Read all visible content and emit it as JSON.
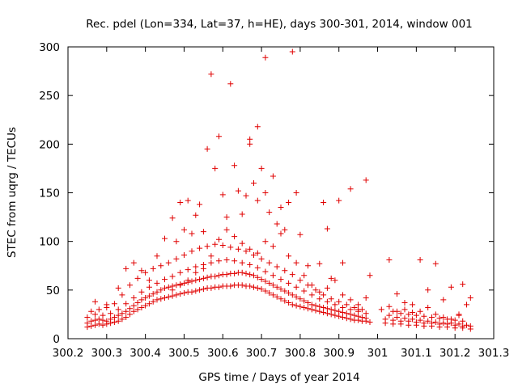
{
  "chart_data": {
    "type": "scatter",
    "title": "Rec. pdel (Lon=334, Lat=37, h=HE), days 300-301, 2014, window 001",
    "xlabel": "GPS time / Days of year 2014",
    "ylabel": "STEC from uqrg / TECUs",
    "xlim": [
      300.2,
      301.3
    ],
    "ylim": [
      0,
      300
    ],
    "xticks": [
      "300.2",
      "300.3",
      "300.4",
      "300.5",
      "300.6",
      "300.7",
      "300.8",
      "300.9",
      "301",
      "301.1",
      "301.2",
      "301.3"
    ],
    "xtick_values": [
      300.2,
      300.3,
      300.4,
      300.5,
      300.6,
      300.7,
      300.8,
      300.9,
      301.0,
      301.1,
      301.2,
      301.3
    ],
    "yticks": [
      "0",
      "50",
      "100",
      "150",
      "200",
      "250",
      "300"
    ],
    "ytick_values": [
      0,
      50,
      100,
      150,
      200,
      250,
      300
    ],
    "grid": false,
    "marker": "+",
    "color": "#e00000",
    "points": [
      [
        300.25,
        12
      ],
      [
        300.26,
        13
      ],
      [
        300.27,
        14
      ],
      [
        300.28,
        15
      ],
      [
        300.29,
        14
      ],
      [
        300.3,
        15
      ],
      [
        300.31,
        16
      ],
      [
        300.32,
        17
      ],
      [
        300.33,
        18
      ],
      [
        300.34,
        20
      ],
      [
        300.35,
        22
      ],
      [
        300.36,
        25
      ],
      [
        300.37,
        28
      ],
      [
        300.38,
        30
      ],
      [
        300.39,
        32
      ],
      [
        300.4,
        34
      ],
      [
        300.41,
        36
      ],
      [
        300.42,
        38
      ],
      [
        300.43,
        40
      ],
      [
        300.44,
        41
      ],
      [
        300.45,
        42
      ],
      [
        300.46,
        43
      ],
      [
        300.47,
        44
      ],
      [
        300.48,
        45
      ],
      [
        300.49,
        46
      ],
      [
        300.5,
        47
      ],
      [
        300.51,
        48
      ],
      [
        300.52,
        48
      ],
      [
        300.53,
        49
      ],
      [
        300.54,
        50
      ],
      [
        300.55,
        51
      ],
      [
        300.56,
        52
      ],
      [
        300.57,
        52
      ],
      [
        300.58,
        53
      ],
      [
        300.59,
        53
      ],
      [
        300.6,
        54
      ],
      [
        300.61,
        54
      ],
      [
        300.62,
        54
      ],
      [
        300.63,
        55
      ],
      [
        300.64,
        55
      ],
      [
        300.65,
        55
      ],
      [
        300.66,
        54
      ],
      [
        300.67,
        54
      ],
      [
        300.68,
        53
      ],
      [
        300.69,
        52
      ],
      [
        300.7,
        51
      ],
      [
        300.71,
        49
      ],
      [
        300.72,
        47
      ],
      [
        300.73,
        45
      ],
      [
        300.74,
        43
      ],
      [
        300.75,
        41
      ],
      [
        300.76,
        39
      ],
      [
        300.77,
        37
      ],
      [
        300.78,
        35
      ],
      [
        300.79,
        34
      ],
      [
        300.8,
        33
      ],
      [
        300.81,
        32
      ],
      [
        300.82,
        31
      ],
      [
        300.83,
        30
      ],
      [
        300.84,
        29
      ],
      [
        300.85,
        28
      ],
      [
        300.86,
        27
      ],
      [
        300.87,
        26
      ],
      [
        300.88,
        25
      ],
      [
        300.89,
        24
      ],
      [
        300.9,
        23
      ],
      [
        300.91,
        22
      ],
      [
        300.92,
        21
      ],
      [
        300.93,
        20
      ],
      [
        300.94,
        19
      ],
      [
        300.95,
        19
      ],
      [
        300.96,
        18
      ],
      [
        300.97,
        18
      ],
      [
        300.98,
        17
      ],
      [
        301.02,
        16
      ],
      [
        301.04,
        15
      ],
      [
        301.06,
        15
      ],
      [
        301.08,
        14
      ],
      [
        301.1,
        14
      ],
      [
        301.12,
        13
      ],
      [
        301.14,
        13
      ],
      [
        301.16,
        12
      ],
      [
        301.18,
        12
      ],
      [
        301.2,
        11
      ],
      [
        301.22,
        11
      ],
      [
        301.24,
        10
      ],
      [
        300.25,
        16
      ],
      [
        300.26,
        18
      ],
      [
        300.27,
        19
      ],
      [
        300.28,
        20
      ],
      [
        300.29,
        19
      ],
      [
        300.3,
        18
      ],
      [
        300.31,
        20
      ],
      [
        300.32,
        22
      ],
      [
        300.33,
        24
      ],
      [
        300.34,
        26
      ],
      [
        300.35,
        28
      ],
      [
        300.36,
        31
      ],
      [
        300.37,
        34
      ],
      [
        300.38,
        37
      ],
      [
        300.39,
        40
      ],
      [
        300.4,
        42
      ],
      [
        300.41,
        44
      ],
      [
        300.42,
        46
      ],
      [
        300.43,
        48
      ],
      [
        300.44,
        50
      ],
      [
        300.45,
        52
      ],
      [
        300.46,
        53
      ],
      [
        300.47,
        54
      ],
      [
        300.48,
        55
      ],
      [
        300.49,
        56
      ],
      [
        300.5,
        57
      ],
      [
        300.51,
        58
      ],
      [
        300.52,
        59
      ],
      [
        300.53,
        60
      ],
      [
        300.54,
        61
      ],
      [
        300.55,
        62
      ],
      [
        300.56,
        63
      ],
      [
        300.57,
        64
      ],
      [
        300.58,
        64
      ],
      [
        300.59,
        65
      ],
      [
        300.6,
        66
      ],
      [
        300.61,
        66
      ],
      [
        300.62,
        67
      ],
      [
        300.63,
        67
      ],
      [
        300.64,
        68
      ],
      [
        300.65,
        68
      ],
      [
        300.66,
        67
      ],
      [
        300.67,
        66
      ],
      [
        300.68,
        65
      ],
      [
        300.69,
        63
      ],
      [
        300.7,
        61
      ],
      [
        300.71,
        59
      ],
      [
        300.72,
        57
      ],
      [
        300.73,
        55
      ],
      [
        300.74,
        53
      ],
      [
        300.75,
        51
      ],
      [
        300.76,
        49
      ],
      [
        300.77,
        47
      ],
      [
        300.78,
        45
      ],
      [
        300.79,
        43
      ],
      [
        300.8,
        41
      ],
      [
        300.81,
        39
      ],
      [
        300.82,
        37
      ],
      [
        300.83,
        35
      ],
      [
        300.84,
        34
      ],
      [
        300.85,
        33
      ],
      [
        300.86,
        32
      ],
      [
        300.87,
        31
      ],
      [
        300.88,
        30
      ],
      [
        300.89,
        29
      ],
      [
        300.9,
        28
      ],
      [
        300.91,
        27
      ],
      [
        300.92,
        26
      ],
      [
        300.93,
        25
      ],
      [
        300.94,
        24
      ],
      [
        300.95,
        23
      ],
      [
        300.96,
        22
      ],
      [
        300.97,
        21
      ],
      [
        301.02,
        20
      ],
      [
        301.04,
        19
      ],
      [
        301.06,
        18
      ],
      [
        301.08,
        18
      ],
      [
        301.1,
        17
      ],
      [
        301.12,
        16
      ],
      [
        301.14,
        16
      ],
      [
        301.16,
        15
      ],
      [
        301.18,
        15
      ],
      [
        301.2,
        14
      ],
      [
        301.22,
        13
      ],
      [
        301.24,
        13
      ],
      [
        300.25,
        22
      ],
      [
        300.27,
        25
      ],
      [
        300.29,
        24
      ],
      [
        300.31,
        26
      ],
      [
        300.33,
        30
      ],
      [
        300.35,
        36
      ],
      [
        300.37,
        42
      ],
      [
        300.39,
        48
      ],
      [
        300.41,
        53
      ],
      [
        300.43,
        57
      ],
      [
        300.45,
        61
      ],
      [
        300.47,
        64
      ],
      [
        300.49,
        68
      ],
      [
        300.51,
        71
      ],
      [
        300.53,
        74
      ],
      [
        300.55,
        76
      ],
      [
        300.57,
        78
      ],
      [
        300.59,
        80
      ],
      [
        300.61,
        81
      ],
      [
        300.63,
        80
      ],
      [
        300.65,
        78
      ],
      [
        300.67,
        76
      ],
      [
        300.69,
        73
      ],
      [
        300.71,
        69
      ],
      [
        300.73,
        65
      ],
      [
        300.75,
        61
      ],
      [
        300.77,
        57
      ],
      [
        300.79,
        53
      ],
      [
        300.81,
        49
      ],
      [
        300.83,
        45
      ],
      [
        300.85,
        41
      ],
      [
        300.87,
        38
      ],
      [
        300.89,
        35
      ],
      [
        300.91,
        32
      ],
      [
        300.93,
        30
      ],
      [
        300.95,
        28
      ],
      [
        300.97,
        26
      ],
      [
        301.03,
        24
      ],
      [
        301.05,
        22
      ],
      [
        301.07,
        21
      ],
      [
        301.09,
        20
      ],
      [
        301.11,
        19
      ],
      [
        301.13,
        18
      ],
      [
        301.15,
        17
      ],
      [
        301.17,
        16
      ],
      [
        301.19,
        16
      ],
      [
        301.21,
        15
      ],
      [
        301.23,
        14
      ],
      [
        300.26,
        28
      ],
      [
        300.28,
        30
      ],
      [
        300.3,
        32
      ],
      [
        300.32,
        36
      ],
      [
        300.34,
        45
      ],
      [
        300.36,
        55
      ],
      [
        300.38,
        62
      ],
      [
        300.4,
        68
      ],
      [
        300.42,
        72
      ],
      [
        300.44,
        75
      ],
      [
        300.46,
        78
      ],
      [
        300.48,
        82
      ],
      [
        300.5,
        86
      ],
      [
        300.52,
        90
      ],
      [
        300.54,
        93
      ],
      [
        300.56,
        95
      ],
      [
        300.58,
        97
      ],
      [
        300.6,
        96
      ],
      [
        300.62,
        94
      ],
      [
        300.64,
        92
      ],
      [
        300.66,
        90
      ],
      [
        300.68,
        86
      ],
      [
        300.7,
        82
      ],
      [
        300.72,
        78
      ],
      [
        300.74,
        74
      ],
      [
        300.76,
        70
      ],
      [
        300.78,
        66
      ],
      [
        300.8,
        60
      ],
      [
        300.82,
        55
      ],
      [
        300.84,
        50
      ],
      [
        300.86,
        45
      ],
      [
        300.88,
        41
      ],
      [
        300.9,
        38
      ],
      [
        300.92,
        35
      ],
      [
        300.94,
        32
      ],
      [
        300.96,
        30
      ],
      [
        301.04,
        28
      ],
      [
        301.06,
        26
      ],
      [
        301.08,
        25
      ],
      [
        301.1,
        24
      ],
      [
        301.12,
        23
      ],
      [
        301.14,
        22
      ],
      [
        301.16,
        21
      ],
      [
        301.18,
        20
      ],
      [
        301.2,
        19
      ],
      [
        301.22,
        18
      ],
      [
        300.27,
        38
      ],
      [
        300.3,
        35
      ],
      [
        300.33,
        52
      ],
      [
        300.35,
        72
      ],
      [
        300.37,
        78
      ],
      [
        300.39,
        70
      ],
      [
        300.41,
        60
      ],
      [
        300.43,
        85
      ],
      [
        300.45,
        103
      ],
      [
        300.47,
        124
      ],
      [
        300.48,
        100
      ],
      [
        300.49,
        140
      ],
      [
        300.5,
        112
      ],
      [
        300.51,
        142
      ],
      [
        300.52,
        108
      ],
      [
        300.53,
        127
      ],
      [
        300.54,
        138
      ],
      [
        300.55,
        110
      ],
      [
        300.56,
        195
      ],
      [
        300.57,
        272
      ],
      [
        300.58,
        175
      ],
      [
        300.59,
        208
      ],
      [
        300.6,
        148
      ],
      [
        300.61,
        125
      ],
      [
        300.62,
        262
      ],
      [
        300.63,
        178
      ],
      [
        300.64,
        152
      ],
      [
        300.65,
        128
      ],
      [
        300.66,
        147
      ],
      [
        300.67,
        200
      ],
      [
        300.67,
        205
      ],
      [
        300.68,
        160
      ],
      [
        300.69,
        218
      ],
      [
        300.69,
        142
      ],
      [
        300.7,
        175
      ],
      [
        300.71,
        150
      ],
      [
        300.71,
        289
      ],
      [
        300.72,
        130
      ],
      [
        300.73,
        167
      ],
      [
        300.74,
        118
      ],
      [
        300.75,
        135
      ],
      [
        300.76,
        112
      ],
      [
        300.77,
        140
      ],
      [
        300.78,
        295
      ],
      [
        300.79,
        150
      ],
      [
        300.8,
        107
      ],
      [
        300.82,
        75
      ],
      [
        300.85,
        77
      ],
      [
        300.86,
        140
      ],
      [
        300.87,
        113
      ],
      [
        300.88,
        62
      ],
      [
        300.9,
        142
      ],
      [
        300.91,
        78
      ],
      [
        300.93,
        154
      ],
      [
        300.95,
        30
      ],
      [
        300.97,
        163
      ],
      [
        300.98,
        65
      ],
      [
        301.03,
        81
      ],
      [
        301.05,
        46
      ],
      [
        301.07,
        37
      ],
      [
        301.09,
        27
      ],
      [
        301.11,
        81
      ],
      [
        301.13,
        50
      ],
      [
        301.15,
        77
      ],
      [
        301.17,
        40
      ],
      [
        301.19,
        53
      ],
      [
        301.21,
        25
      ],
      [
        301.22,
        56
      ],
      [
        301.24,
        42
      ],
      [
        300.47,
        50
      ],
      [
        300.49,
        55
      ],
      [
        300.51,
        60
      ],
      [
        300.53,
        68
      ],
      [
        300.55,
        72
      ],
      [
        300.57,
        85
      ],
      [
        300.59,
        102
      ],
      [
        300.61,
        112
      ],
      [
        300.63,
        105
      ],
      [
        300.65,
        98
      ],
      [
        300.67,
        92
      ],
      [
        300.69,
        88
      ],
      [
        300.71,
        100
      ],
      [
        300.73,
        95
      ],
      [
        300.75,
        108
      ],
      [
        300.77,
        85
      ],
      [
        300.79,
        78
      ],
      [
        300.81,
        65
      ],
      [
        300.83,
        55
      ],
      [
        300.85,
        48
      ],
      [
        300.87,
        52
      ],
      [
        300.89,
        60
      ],
      [
        300.91,
        45
      ],
      [
        300.93,
        40
      ],
      [
        300.95,
        35
      ],
      [
        300.97,
        42
      ],
      [
        301.01,
        30
      ],
      [
        301.03,
        33
      ],
      [
        301.05,
        28
      ],
      [
        301.07,
        30
      ],
      [
        301.09,
        35
      ],
      [
        301.11,
        28
      ],
      [
        301.13,
        32
      ],
      [
        301.15,
        25
      ],
      [
        301.17,
        22
      ],
      [
        301.19,
        20
      ],
      [
        301.21,
        24
      ],
      [
        301.23,
        35
      ]
    ]
  }
}
